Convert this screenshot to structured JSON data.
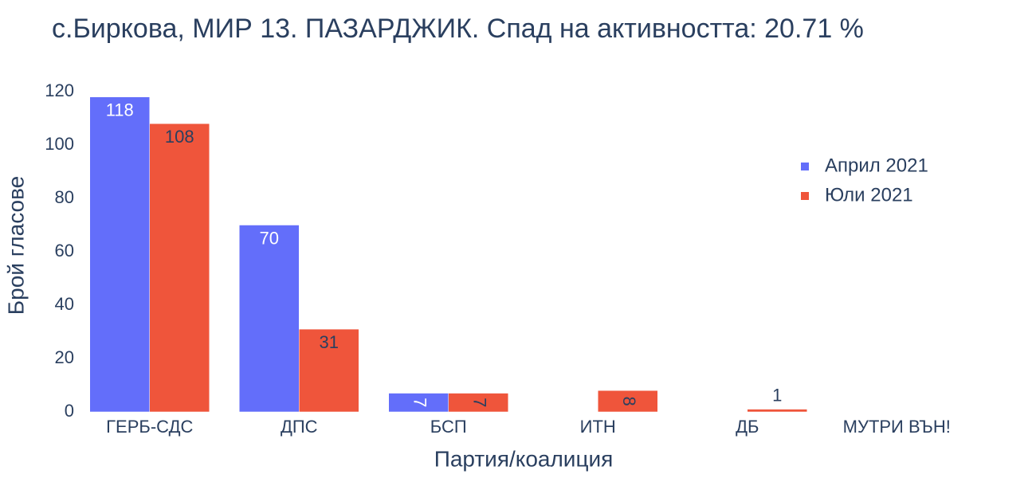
{
  "chart_data": {
    "type": "bar",
    "title": "с.Биркова, МИР 13. ПАЗАРДЖИК. Спад на активността: 20.71 %",
    "x_label": "Партия/коалиция",
    "y_label": "Брой гласове",
    "categories": [
      "ГЕРБ-СДС",
      "ДПС",
      "БСП",
      "ИТН",
      "ДБ",
      "МУТРИ ВЪН!"
    ],
    "series": [
      {
        "name": "Април 2021",
        "color": "#636efa",
        "values": [
          118,
          70,
          7,
          0,
          0,
          0
        ]
      },
      {
        "name": "Юли 2021",
        "color": "#ef553b",
        "values": [
          108,
          31,
          7,
          8,
          1,
          0
        ]
      }
    ],
    "ylim": [
      0,
      124
    ],
    "yticks": [
      0,
      20,
      40,
      60,
      80,
      100,
      120
    ],
    "legend": "upper right"
  }
}
